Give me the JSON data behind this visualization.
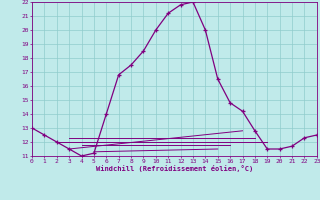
{
  "xlabel": "Windchill (Refroidissement éolien,°C)",
  "xlim": [
    0,
    23
  ],
  "ylim": [
    11,
    22
  ],
  "yticks": [
    11,
    12,
    13,
    14,
    15,
    16,
    17,
    18,
    19,
    20,
    21,
    22
  ],
  "xticks": [
    0,
    1,
    2,
    3,
    4,
    5,
    6,
    7,
    8,
    9,
    10,
    11,
    12,
    13,
    14,
    15,
    16,
    17,
    18,
    19,
    20,
    21,
    22,
    23
  ],
  "background_color": "#c0eaea",
  "line_color": "#800080",
  "grid_color": "#90cccc",
  "main_line_x": [
    0,
    1,
    2,
    3,
    4,
    5,
    6,
    7,
    8,
    9,
    10,
    11,
    12,
    13,
    14,
    15,
    16,
    17,
    18,
    19,
    20,
    21,
    22,
    23
  ],
  "main_line_y": [
    13,
    12.5,
    12,
    11.5,
    11,
    11.2,
    14,
    16.8,
    17.5,
    18.5,
    20,
    21.2,
    21.8,
    22,
    20,
    16.5,
    14.8,
    14.2,
    12.8,
    11.5,
    11.5,
    11.7,
    12.3,
    12.5
  ],
  "extra_lines": [
    {
      "x": [
        2,
        19
      ],
      "y": [
        12.0,
        12.0
      ]
    },
    {
      "x": [
        3,
        18
      ],
      "y": [
        12.3,
        12.3
      ]
    },
    {
      "x": [
        3,
        17
      ],
      "y": [
        11.5,
        12.8
      ]
    },
    {
      "x": [
        4,
        16
      ],
      "y": [
        11.8,
        11.8
      ]
    },
    {
      "x": [
        5,
        15
      ],
      "y": [
        11.3,
        11.5
      ]
    }
  ]
}
